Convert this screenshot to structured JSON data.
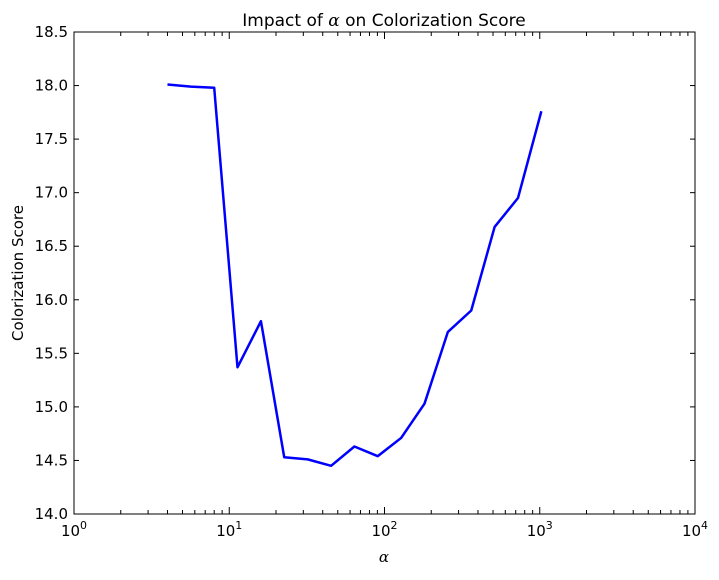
{
  "chart_data": {
    "type": "line",
    "title_prefix": "Impact of ",
    "title_symbol": "α",
    "title_suffix": " on Colorization Score",
    "xlabel": "α",
    "ylabel": "Colorization Score",
    "xscale": "log",
    "xlim": [
      1,
      10000
    ],
    "ylim": [
      14.0,
      18.5
    ],
    "x_ticks": [
      {
        "value": 1,
        "base": "10",
        "exp": "0"
      },
      {
        "value": 10,
        "base": "10",
        "exp": "1"
      },
      {
        "value": 100,
        "base": "10",
        "exp": "2"
      },
      {
        "value": 1000,
        "base": "10",
        "exp": "3"
      },
      {
        "value": 10000,
        "base": "10",
        "exp": "4"
      }
    ],
    "y_ticks": [
      "14.0",
      "14.5",
      "15.0",
      "15.5",
      "16.0",
      "16.5",
      "17.0",
      "17.5",
      "18.0",
      "18.5"
    ],
    "grid": false,
    "series": [
      {
        "color": "#0000ff",
        "x": [
          4,
          5.66,
          8,
          11.3,
          16,
          22.6,
          32,
          45.3,
          64,
          90.5,
          128,
          181,
          256,
          362,
          512,
          724,
          1024
        ],
        "y": [
          18.01,
          17.99,
          17.98,
          15.37,
          15.8,
          14.53,
          14.51,
          14.45,
          14.63,
          14.54,
          14.71,
          15.03,
          15.7,
          15.9,
          16.68,
          16.95,
          17.76
        ]
      }
    ]
  }
}
